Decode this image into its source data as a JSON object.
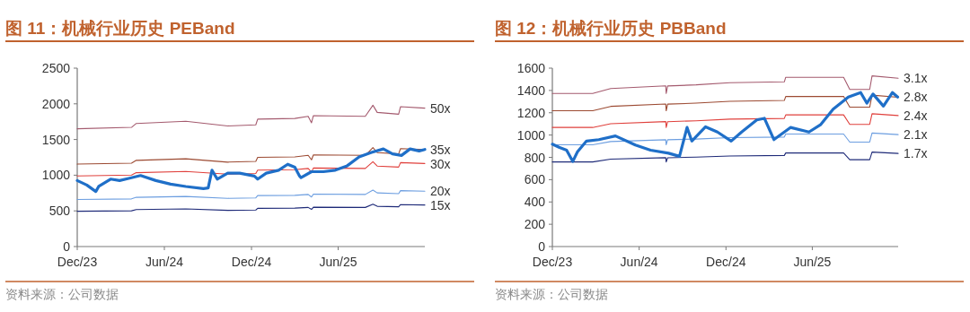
{
  "chart_data": [
    {
      "type": "line",
      "title": "图 11：机械行业历史 PEBand",
      "annotations": [
        "资料来源：公司数据"
      ],
      "xlim": [
        "2023-12-01",
        "2025-11-30"
      ],
      "xticks": [
        {
          "value": "2023-12-01",
          "label": "Dec/23"
        },
        {
          "value": "2024-06-01",
          "label": "Jun/24"
        },
        {
          "value": "2024-12-01",
          "label": "Dec/24"
        },
        {
          "value": "2025-06-01",
          "label": "Jun/25"
        }
      ],
      "ylim": [
        0,
        2500
      ],
      "yticks": [
        0,
        500,
        1000,
        1500,
        2000,
        2500
      ],
      "grid": false,
      "line_style": "solid",
      "marker": "none",
      "series": [
        {
          "name": "50x",
          "color": "#a45a6e",
          "x": [
            "2023-12-01",
            "2024-03-24",
            "2024-04-03",
            "2024-07-16",
            "2024-10-12",
            "2024-12-10",
            "2024-12-14",
            "2025-03-02",
            "2025-03-30",
            "2025-04-06",
            "2025-04-10",
            "2025-07-28",
            "2025-08-13",
            "2025-08-22",
            "2025-10-06",
            "2025-10-10",
            "2025-11-30"
          ],
          "values": [
            1650,
            1670,
            1725,
            1755,
            1690,
            1705,
            1785,
            1795,
            1825,
            1735,
            1835,
            1825,
            1980,
            1880,
            1855,
            1960,
            1940
          ]
        },
        {
          "name": "35x",
          "color": "#9c4a32",
          "x": [
            "2023-12-01",
            "2024-03-24",
            "2024-04-03",
            "2024-07-16",
            "2024-10-12",
            "2024-12-10",
            "2024-12-14",
            "2025-03-02",
            "2025-03-30",
            "2025-04-06",
            "2025-04-10",
            "2025-07-28",
            "2025-08-13",
            "2025-08-22",
            "2025-10-06",
            "2025-10-10",
            "2025-11-30"
          ],
          "values": [
            1155,
            1169,
            1208,
            1229,
            1183,
            1194,
            1250,
            1257,
            1278,
            1215,
            1285,
            1278,
            1386,
            1316,
            1299,
            1372,
            1358
          ]
        },
        {
          "name": "30x",
          "color": "#e0403c",
          "x": [
            "2023-12-01",
            "2024-03-24",
            "2024-04-03",
            "2024-07-16",
            "2024-10-12",
            "2024-12-10",
            "2024-12-14",
            "2025-03-02",
            "2025-03-30",
            "2025-04-06",
            "2025-04-10",
            "2025-07-28",
            "2025-08-13",
            "2025-08-22",
            "2025-10-06",
            "2025-10-10",
            "2025-11-30"
          ],
          "values": [
            990,
            1002,
            1035,
            1053,
            1014,
            1023,
            1071,
            1077,
            1095,
            1041,
            1101,
            1095,
            1188,
            1128,
            1113,
            1176,
            1164
          ]
        },
        {
          "name": "20x",
          "color": "#6c9ee0",
          "x": [
            "2023-12-01",
            "2024-03-24",
            "2024-04-03",
            "2024-07-16",
            "2024-10-12",
            "2024-12-10",
            "2024-12-14",
            "2025-03-02",
            "2025-03-30",
            "2025-04-06",
            "2025-04-10",
            "2025-07-28",
            "2025-08-13",
            "2025-08-22",
            "2025-10-06",
            "2025-10-10",
            "2025-11-30"
          ],
          "values": [
            660,
            668,
            690,
            702,
            676,
            682,
            714,
            718,
            730,
            694,
            734,
            730,
            792,
            752,
            742,
            784,
            776
          ]
        },
        {
          "name": "15x",
          "color": "#1e2a78",
          "x": [
            "2023-12-01",
            "2024-03-24",
            "2024-04-03",
            "2024-07-16",
            "2024-10-12",
            "2024-12-10",
            "2024-12-14",
            "2025-03-02",
            "2025-03-30",
            "2025-04-06",
            "2025-04-10",
            "2025-07-28",
            "2025-08-13",
            "2025-08-22",
            "2025-10-06",
            "2025-10-10",
            "2025-11-30"
          ],
          "values": [
            495,
            501,
            518,
            527,
            507,
            512,
            536,
            539,
            548,
            521,
            551,
            548,
            594,
            564,
            557,
            588,
            582
          ]
        },
        {
          "color": "#1f6fc8",
          "x": [
            "2023-12-01",
            "2023-12-21",
            "2024-01-09",
            "2024-01-15",
            "2024-02-09",
            "2024-02-28",
            "2024-03-18",
            "2024-04-12",
            "2024-05-14",
            "2024-06-14",
            "2024-07-16",
            "2024-08-22",
            "2024-09-01",
            "2024-09-09",
            "2024-09-20",
            "2024-10-12",
            "2024-11-06",
            "2024-12-07",
            "2024-12-14",
            "2025-01-01",
            "2025-01-27",
            "2025-02-15",
            "2025-03-02",
            "2025-03-12",
            "2025-03-15",
            "2025-04-06",
            "2025-05-01",
            "2025-05-26",
            "2025-06-20",
            "2025-07-15",
            "2025-08-10",
            "2025-09-04",
            "2025-09-23",
            "2025-10-12",
            "2025-10-30",
            "2025-11-18",
            "2025-11-30"
          ],
          "values": [
            925,
            862,
            771,
            842,
            945,
            925,
            954,
            995,
            925,
            875,
            842,
            813,
            821,
            1070,
            945,
            1028,
            1028,
            987,
            945,
            1028,
            1070,
            1153,
            1111,
            987,
            966,
            1049,
            1049,
            1070,
            1132,
            1256,
            1318,
            1368,
            1298,
            1277,
            1368,
            1339,
            1360
          ]
        }
      ]
    },
    {
      "type": "line",
      "title": "图 12：机械行业历史 PBBand",
      "annotations": [
        "资料来源：公司数据"
      ],
      "xlim": [
        "2023-12-01",
        "2025-11-29"
      ],
      "xticks": [
        {
          "value": "2023-12-01",
          "label": "Dec/23"
        },
        {
          "value": "2024-06-01",
          "label": "Jun/24"
        },
        {
          "value": "2024-12-01",
          "label": "Dec/24"
        },
        {
          "value": "2025-06-01",
          "label": "Jun/25"
        }
      ],
      "ylim": [
        0,
        1600
      ],
      "yticks": [
        0,
        200,
        400,
        600,
        800,
        1000,
        1200,
        1400,
        1600
      ],
      "grid": false,
      "line_style": "solid",
      "marker": "none",
      "series": [
        {
          "name": "3.1x",
          "color": "#a45a6e",
          "x": [
            "2023-12-01",
            "2024-02-24",
            "2024-04-02",
            "2024-07-27",
            "2024-07-28",
            "2024-07-31",
            "2024-09-29",
            "2024-12-09",
            "2025-04-03",
            "2025-04-06",
            "2025-08-06",
            "2025-08-19",
            "2025-09-30",
            "2025-10-05",
            "2025-11-29"
          ],
          "values": [
            1373,
            1373,
            1417,
            1441,
            1373,
            1440,
            1450,
            1469,
            1477,
            1518,
            1518,
            1409,
            1409,
            1531,
            1510
          ]
        },
        {
          "name": "2.8x",
          "color": "#9c4a32",
          "x": [
            "2023-12-01",
            "2024-02-24",
            "2024-04-02",
            "2024-07-27",
            "2024-07-28",
            "2024-07-31",
            "2024-09-29",
            "2024-12-09",
            "2025-04-03",
            "2025-04-06",
            "2025-08-06",
            "2025-08-19",
            "2025-09-30",
            "2025-10-05",
            "2025-11-29"
          ],
          "values": [
            1218,
            1218,
            1257,
            1278,
            1218,
            1277,
            1286,
            1303,
            1310,
            1346,
            1346,
            1250,
            1250,
            1358,
            1339
          ]
        },
        {
          "name": "2.4x",
          "color": "#e0403c",
          "x": [
            "2023-12-01",
            "2024-02-24",
            "2024-04-02",
            "2024-07-27",
            "2024-07-28",
            "2024-07-31",
            "2024-09-29",
            "2024-12-09",
            "2025-04-03",
            "2025-04-06",
            "2025-08-06",
            "2025-08-19",
            "2025-09-30",
            "2025-10-05",
            "2025-11-29"
          ],
          "values": [
            1068,
            1068,
            1102,
            1121,
            1068,
            1120,
            1128,
            1143,
            1149,
            1181,
            1181,
            1096,
            1096,
            1191,
            1175
          ]
        },
        {
          "name": "2.1x",
          "color": "#6c9ee0",
          "x": [
            "2023-12-01",
            "2024-02-24",
            "2024-04-02",
            "2024-07-27",
            "2024-07-28",
            "2024-07-31",
            "2024-09-29",
            "2024-12-09",
            "2025-04-03",
            "2025-04-06",
            "2025-08-06",
            "2025-08-19",
            "2025-09-30",
            "2025-10-05",
            "2025-11-29"
          ],
          "values": [
            913,
            913,
            942,
            958,
            913,
            958,
            964,
            977,
            982,
            1009,
            1009,
            937,
            937,
            1018,
            1004
          ]
        },
        {
          "name": "1.7x",
          "color": "#1e2a78",
          "x": [
            "2023-12-01",
            "2024-02-24",
            "2024-04-02",
            "2024-07-27",
            "2024-07-28",
            "2024-07-31",
            "2024-09-29",
            "2024-12-09",
            "2025-04-03",
            "2025-04-06",
            "2025-08-06",
            "2025-08-19",
            "2025-09-30",
            "2025-10-05",
            "2025-11-29"
          ],
          "values": [
            759,
            759,
            784,
            797,
            759,
            796,
            802,
            812,
            817,
            839,
            839,
            779,
            779,
            847,
            835
          ]
        },
        {
          "color": "#1f6fc8",
          "x": [
            "2023-12-01",
            "2023-12-15",
            "2023-12-31",
            "2024-01-13",
            "2024-01-23",
            "2024-02-11",
            "2024-03-08",
            "2024-04-12",
            "2024-05-24",
            "2024-06-25",
            "2024-08-02",
            "2024-08-25",
            "2024-09-10",
            "2024-09-20",
            "2024-10-19",
            "2024-11-13",
            "2024-12-12",
            "2025-01-03",
            "2025-02-04",
            "2025-02-20",
            "2025-03-12",
            "2025-04-16",
            "2025-05-25",
            "2025-06-19",
            "2025-07-15",
            "2025-08-16",
            "2025-09-11",
            "2025-09-24",
            "2025-10-07",
            "2025-10-29",
            "2025-11-17",
            "2025-11-28"
          ],
          "values": [
            918,
            891,
            864,
            763,
            850,
            946,
            959,
            992,
            910,
            864,
            837,
            809,
            1068,
            946,
            1074,
            1027,
            946,
            1027,
            1136,
            1150,
            959,
            1068,
            1027,
            1095,
            1232,
            1341,
            1381,
            1286,
            1368,
            1259,
            1381,
            1341
          ]
        }
      ]
    }
  ]
}
